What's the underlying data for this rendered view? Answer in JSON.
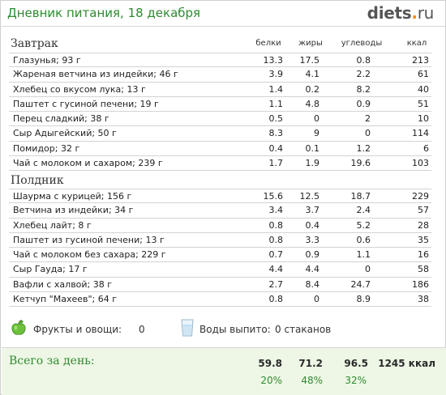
{
  "header": {
    "title": "Дневник питания, 18 декабря",
    "logo_main": "diets",
    "logo_dot": ".",
    "logo_tld": "ru"
  },
  "columns": {
    "protein": "белки",
    "fat": "жиры",
    "carbs": "углеводы",
    "kcal": "ккал"
  },
  "sections": [
    {
      "title": "Завтрак",
      "rows": [
        {
          "name": "Глазунья; 93 г",
          "protein": "13.3",
          "fat": "17.5",
          "carbs": "0.8",
          "kcal": "213"
        },
        {
          "name": "Жареная ветчина из индейки; 46 г",
          "protein": "3.9",
          "fat": "4.1",
          "carbs": "2.2",
          "kcal": "61"
        },
        {
          "name": "Хлебец со вкусом лука; 13 г",
          "protein": "1.4",
          "fat": "0.2",
          "carbs": "8.2",
          "kcal": "40"
        },
        {
          "name": "Паштет с гусиной печени; 19 г",
          "protein": "1.1",
          "fat": "4.8",
          "carbs": "0.9",
          "kcal": "51"
        },
        {
          "name": "Перец сладкий; 38 г",
          "protein": "0.5",
          "fat": "0",
          "carbs": "2",
          "kcal": "10"
        },
        {
          "name": "Сыр Адыгейский; 50 г",
          "protein": "8.3",
          "fat": "9",
          "carbs": "0",
          "kcal": "114"
        },
        {
          "name": "Помидор; 32 г",
          "protein": "0.4",
          "fat": "0.1",
          "carbs": "1.2",
          "kcal": "6"
        },
        {
          "name": "Чай с молоком и сахаром; 239 г",
          "protein": "1.7",
          "fat": "1.9",
          "carbs": "19.6",
          "kcal": "103"
        }
      ]
    },
    {
      "title": "Полдник",
      "rows": [
        {
          "name": "Шаурма с курицей; 156 г",
          "protein": "15.6",
          "fat": "12.5",
          "carbs": "18.7",
          "kcal": "229"
        },
        {
          "name": "Ветчина из индейки; 34 г",
          "protein": "3.4",
          "fat": "3.7",
          "carbs": "2.4",
          "kcal": "57"
        },
        {
          "name": "Хлебец лайт; 8 г",
          "protein": "0.8",
          "fat": "0.4",
          "carbs": "5.2",
          "kcal": "28"
        },
        {
          "name": "Паштет из гусиной печени; 13 г",
          "protein": "0.8",
          "fat": "3.3",
          "carbs": "0.6",
          "kcal": "35"
        },
        {
          "name": "Чай с молоком без сахара; 229 г",
          "protein": "0.7",
          "fat": "0.9",
          "carbs": "1.1",
          "kcal": "16"
        },
        {
          "name": "Сыр Гауда; 17 г",
          "protein": "4.4",
          "fat": "4.4",
          "carbs": "0",
          "kcal": "58"
        },
        {
          "name": "Вафли с халвой; 38 г",
          "protein": "2.7",
          "fat": "8.4",
          "carbs": "24.7",
          "kcal": "186"
        },
        {
          "name": "Кетчуп \"Махеев\"; 64 г",
          "protein": "0.8",
          "fat": "0",
          "carbs": "8.9",
          "kcal": "38"
        }
      ]
    }
  ],
  "extras": {
    "fruits_label": "Фрукты и овощи:",
    "fruits_value": "0",
    "water_label": "Воды выпито:",
    "water_value": "0 стаканов"
  },
  "totals": {
    "label": "Всего за день:",
    "protein": "59.8",
    "fat": "71.2",
    "carbs": "96.5",
    "kcal": "1245 ккал",
    "protein_pct": "20%",
    "fat_pct": "48%",
    "carbs_pct": "32%"
  },
  "colors": {
    "title_green": "#2e8b2e",
    "logo_dot_orange": "#ff8c00",
    "totals_bg": "#eef7e6"
  }
}
